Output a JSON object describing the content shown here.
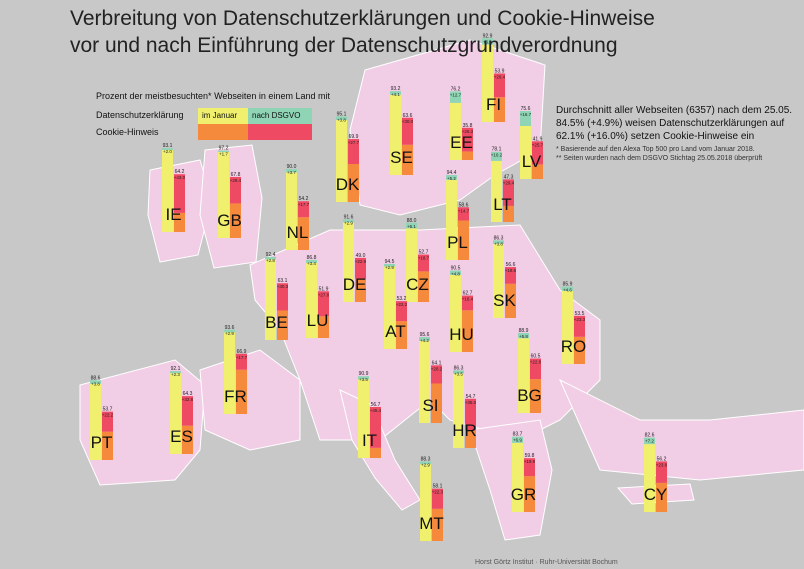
{
  "title_line1": "Verbreitung von Datenschutzerklärungen und Cookie-Hinweise",
  "title_line2": "vor und nach Einführung der Datenschutzgrundverordnung",
  "legend": {
    "caption": "Prozent der meistbesuchten* Webseiten in einem Land mit",
    "row1_label": "Datenschutzerklärung",
    "row2_label": "Cookie-Hinweis",
    "before_label": "im Januar",
    "after_label": "nach DSGVO"
  },
  "note": {
    "line1": "Durchschnitt aller Webseiten (6357) nach dem 25.05.",
    "line2": "84.5% (+4.9%) weisen Datenschutzerklärungen auf",
    "line3": "62.1% (+16.0%) setzen Cookie-Hinweise ein",
    "foot1": "* Basierende auf den Alexa Top 500 pro Land vom Januar 2018.",
    "foot2": "** Seiten wurden nach dem DSGVO Stichtag 25.05.2018 überprüft"
  },
  "credit": "Horst Görtz Institut · Ruhr-Universität Bochum",
  "colors": {
    "background": "#c8c8c8",
    "land": "#f2cde6",
    "privacy_jan": "#f0ef6e",
    "privacy_added": "#8fd4b4",
    "cookie_jan": "#f58a3c",
    "cookie_added": "#ef4a63"
  },
  "chart_data": {
    "type": "bar",
    "series": [
      {
        "name": "Datenschutzerklärung",
        "segments": [
          "im Januar",
          "nach DSGVO"
        ]
      },
      {
        "name": "Cookie-Hinweis",
        "segments": [
          "im Januar",
          "nach DSGVO"
        ]
      }
    ],
    "countries": [
      {
        "code": "IE",
        "privacy_total": 93.1,
        "privacy_delta": "+2.0",
        "cookie_total": 64.2,
        "cookie_delta": "+43.0"
      },
      {
        "code": "GB",
        "privacy_total": 97.2,
        "privacy_delta": "+1.7",
        "cookie_total": 67.8,
        "cookie_delta": "+29.4"
      },
      {
        "code": "NL",
        "privacy_total": 90.0,
        "privacy_delta": "+3.7",
        "cookie_total": 54.2,
        "cookie_delta": "+17.7"
      },
      {
        "code": "DK",
        "privacy_total": 95.1,
        "privacy_delta": "+3.8",
        "cookie_total": 69.9,
        "cookie_delta": "+27.7"
      },
      {
        "code": "SE",
        "privacy_total": 93.2,
        "privacy_delta": "+4.1",
        "cookie_total": 63.6,
        "cookie_delta": "+30.0"
      },
      {
        "code": "FI",
        "privacy_total": 92.9,
        "privacy_delta": "+6.9",
        "cookie_total": 53.9,
        "cookie_delta": "+26.4"
      },
      {
        "code": "EE",
        "privacy_total": 76.2,
        "privacy_delta": "+12.7",
        "cookie_total": 35.8,
        "cookie_delta": "+26.3"
      },
      {
        "code": "LV",
        "privacy_total": 75.6,
        "privacy_delta": "+16.7",
        "cookie_total": 41.9,
        "cookie_delta": "+25.7"
      },
      {
        "code": "LT",
        "privacy_total": 78.1,
        "privacy_delta": "+10.2",
        "cookie_total": 47.3,
        "cookie_delta": "+29.4"
      },
      {
        "code": "PL",
        "privacy_total": 94.4,
        "privacy_delta": "+5.2",
        "cookie_total": 58.6,
        "cookie_delta": "+14.7"
      },
      {
        "code": "DE",
        "privacy_total": 91.6,
        "privacy_delta": "+2.9",
        "cookie_total": 49.0,
        "cookie_delta": "+22.9"
      },
      {
        "code": "BE",
        "privacy_total": 92.4,
        "privacy_delta": "+2.8",
        "cookie_total": 63.1,
        "cookie_delta": "+30.3"
      },
      {
        "code": "LU",
        "privacy_total": 86.8,
        "privacy_delta": "+3.4",
        "cookie_total": 51.9,
        "cookie_delta": "+27.8"
      },
      {
        "code": "CZ",
        "privacy_total": 88.0,
        "privacy_delta": "+6.1",
        "cookie_total": 52.7,
        "cookie_delta": "+18.7"
      },
      {
        "code": "AT",
        "privacy_total": 94.5,
        "privacy_delta": "+2.9",
        "cookie_total": 53.2,
        "cookie_delta": "+22.2"
      },
      {
        "code": "SK",
        "privacy_total": 86.3,
        "privacy_delta": "+3.8",
        "cookie_total": 56.6,
        "cookie_delta": "+18.6"
      },
      {
        "code": "HU",
        "privacy_total": 90.5,
        "privacy_delta": "+4.8",
        "cookie_total": 62.7,
        "cookie_delta": "+16.4"
      },
      {
        "code": "RO",
        "privacy_total": 85.9,
        "privacy_delta": "+4.6",
        "cookie_total": 53.5,
        "cookie_delta": "+23.3"
      },
      {
        "code": "FR",
        "privacy_total": 93.6,
        "privacy_delta": "+2.9",
        "cookie_total": 66.9,
        "cookie_delta": "+17.7"
      },
      {
        "code": "SI",
        "privacy_total": 95.6,
        "privacy_delta": "+4.2",
        "cookie_total": 64.1,
        "cookie_delta": "+20.2"
      },
      {
        "code": "HR",
        "privacy_total": 86.3,
        "privacy_delta": "+3.5",
        "cookie_total": 54.7,
        "cookie_delta": "+35.0"
      },
      {
        "code": "BG",
        "privacy_total": 88.9,
        "privacy_delta": "+5.8",
        "cookie_total": 60.5,
        "cookie_delta": "+22.8"
      },
      {
        "code": "IT",
        "privacy_total": 90.9,
        "privacy_delta": "+3.5",
        "cookie_total": 56.7,
        "cookie_delta": "+45.4"
      },
      {
        "code": "PT",
        "privacy_total": 88.6,
        "privacy_delta": "+3.8",
        "cookie_total": 53.7,
        "cookie_delta": "+22.2"
      },
      {
        "code": "ES",
        "privacy_total": 92.1,
        "privacy_delta": "+2.3",
        "cookie_total": 64.3,
        "cookie_delta": "+32.8"
      },
      {
        "code": "GR",
        "privacy_total": 83.7,
        "privacy_delta": "+6.9",
        "cookie_total": 59.8,
        "cookie_delta": "+19.9"
      },
      {
        "code": "MT",
        "privacy_total": 88.3,
        "privacy_delta": "+2.9",
        "cookie_total": 58.1,
        "cookie_delta": "+22.3"
      },
      {
        "code": "CY",
        "privacy_total": 82.6,
        "privacy_delta": "+7.2",
        "cookie_total": 56.2,
        "cookie_delta": "+23.8"
      }
    ]
  }
}
